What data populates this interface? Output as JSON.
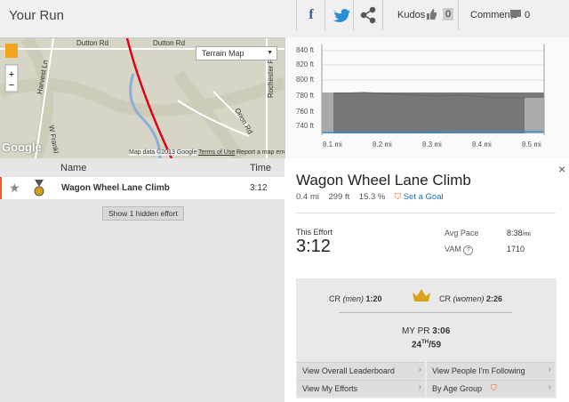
{
  "header": {
    "title": "Your Run",
    "kudos": {
      "label": "Kudos",
      "count": 0
    },
    "comments": {
      "label": "Comments",
      "count": 0
    }
  },
  "map": {
    "type_select": "Terrain Map",
    "road_labels": [
      "Dutton Rd",
      "Dutton Rd",
      "Rochester Rd N",
      "Orion Rd",
      "Harvest Ln",
      "W Frankl"
    ],
    "attribution": "Map data ©2013 Google",
    "terms": "Terms of Use",
    "report": "Report a map error",
    "logo": "Google"
  },
  "efforts_table": {
    "columns": [
      "Name",
      "Time"
    ],
    "rows": [
      [
        "Wagon Wheel Lane Climb",
        "3:12"
      ]
    ],
    "hidden_button": "Show 1 hidden effort"
  },
  "elevation": {
    "y_labels": [
      "840 ft",
      "820 ft",
      "800 ft",
      "780 ft",
      "760 ft",
      "740 ft"
    ],
    "x_labels": [
      "8.1 mi",
      "8.2 mi",
      "8.3 mi",
      "8.4 mi",
      "8.5 mi"
    ]
  },
  "segment": {
    "title": "Wagon Wheel Lane Climb",
    "distance": "0.4 mi",
    "elevation_gain": "299 ft",
    "grade": "15.3 %",
    "goal_link": "Set a Goal",
    "this_effort": {
      "label": "This Effort",
      "time": "3:12"
    },
    "avg_pace": {
      "label": "Avg Pace",
      "value": "8:38",
      "unit": "/mi"
    },
    "vam": {
      "label": "VAM",
      "help": "?",
      "value": "1710"
    },
    "cr_men": {
      "label": "CR",
      "qualifier": "(men)",
      "time": "1:20"
    },
    "cr_women": {
      "label": "CR",
      "qualifier": "(women)",
      "time": "2:26"
    },
    "pr": {
      "label": "MY PR",
      "time": "3:06",
      "rank": "24",
      "rank_suffix": "TH",
      "total": "/59"
    },
    "links": [
      "View Overall Leaderboard",
      "View People I'm Following",
      "View My Efforts",
      "By Age Group"
    ]
  }
}
